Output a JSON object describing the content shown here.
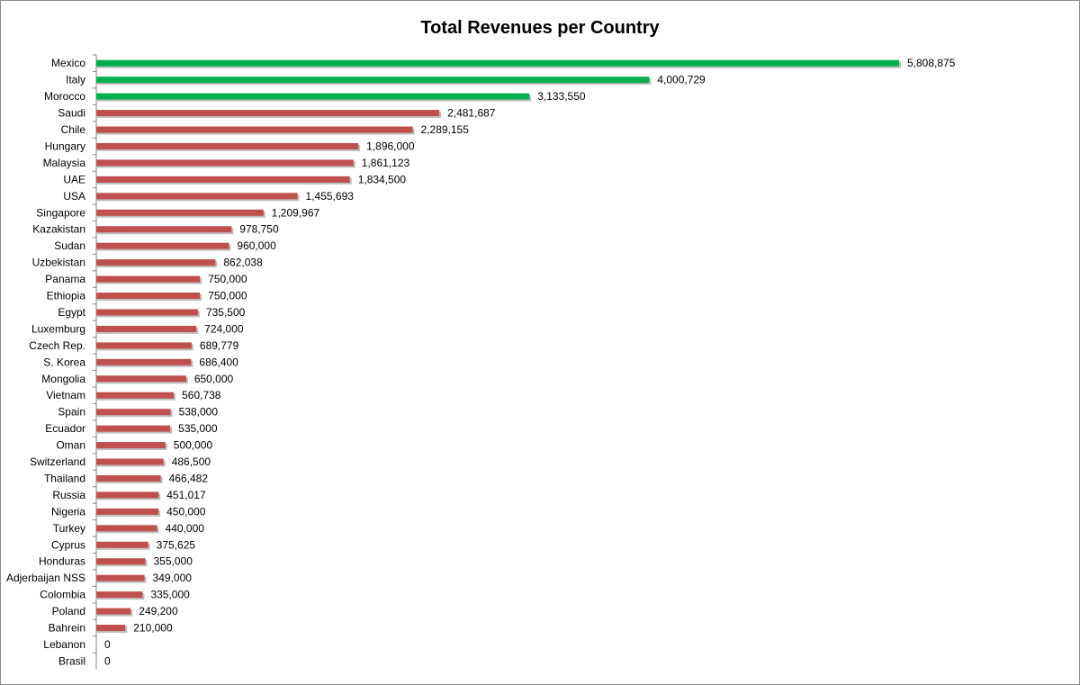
{
  "chart_data": {
    "type": "bar",
    "orientation": "horizontal",
    "title": "Total Revenues per Country",
    "categories": [
      "Mexico",
      "Italy",
      "Morocco",
      "Saudi",
      "Chile",
      "Hungary",
      "Malaysia",
      "UAE",
      "USA",
      "Singapore",
      "Kazakistan",
      "Sudan",
      "Uzbekistan",
      "Panama",
      "Ethiopia",
      "Egypt",
      "Luxemburg",
      "Czech Rep.",
      "S. Korea",
      "Mongolia",
      "Vietnam",
      "Spain",
      "Ecuador",
      "Oman",
      "Switzerland",
      "Thailand",
      "Russia",
      "Nigeria",
      "Turkey",
      "Cyprus",
      "Honduras",
      "Adjerbaijan NSS",
      "Colombia",
      "Poland",
      "Bahrein",
      "Lebanon",
      "Brasil"
    ],
    "values": [
      5808875,
      4000729,
      3133550,
      2481687,
      2289155,
      1896000,
      1861123,
      1834500,
      1455693,
      1209967,
      978750,
      960000,
      862038,
      750000,
      750000,
      735500,
      724000,
      689779,
      686400,
      650000,
      560738,
      538000,
      535000,
      500000,
      486500,
      466482,
      451017,
      450000,
      440000,
      375625,
      355000,
      349000,
      335000,
      249200,
      210000,
      0,
      0
    ],
    "value_labels": [
      "5,808,875",
      "4,000,729",
      "3,133,550",
      "2,481,687",
      "2,289,155",
      "1,896,000",
      "1,861,123",
      "1,834,500",
      "1,455,693",
      "1,209,967",
      "978,750",
      "960,000",
      "862,038",
      "750,000",
      "750,000",
      "735,500",
      "724,000",
      "689,779",
      "686,400",
      "650,000",
      "560,738",
      "538,000",
      "535,000",
      "500,000",
      "486,500",
      "466,482",
      "451,017",
      "450,000",
      "440,000",
      "375,625",
      "355,000",
      "349,000",
      "335,000",
      "249,200",
      "210,000",
      "0",
      "0"
    ],
    "bar_colors": [
      "#00b050",
      "#00b050",
      "#00b050",
      "#c0504d",
      "#c0504d",
      "#c0504d",
      "#c0504d",
      "#c0504d",
      "#c0504d",
      "#c0504d",
      "#c0504d",
      "#c0504d",
      "#c0504d",
      "#c0504d",
      "#c0504d",
      "#c0504d",
      "#c0504d",
      "#c0504d",
      "#c0504d",
      "#c0504d",
      "#c0504d",
      "#c0504d",
      "#c0504d",
      "#c0504d",
      "#c0504d",
      "#c0504d",
      "#c0504d",
      "#c0504d",
      "#c0504d",
      "#c0504d",
      "#c0504d",
      "#c0504d",
      "#c0504d",
      "#c0504d",
      "#c0504d",
      "#c0504d",
      "#c0504d"
    ],
    "xlim": [
      0,
      5808875
    ],
    "grid": false,
    "legend": "none",
    "xaxis_visible": false
  }
}
